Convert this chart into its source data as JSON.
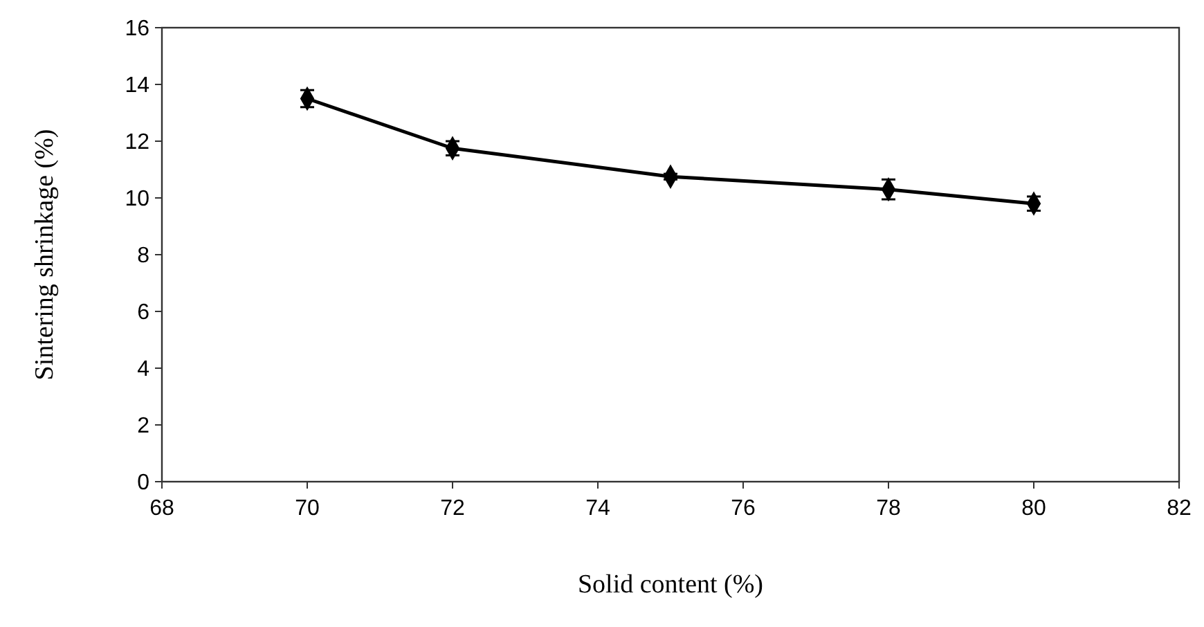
{
  "chart_data": {
    "type": "line",
    "xlabel": "Solid content (%)",
    "ylabel": "Sintering shrinkage (%)",
    "x": [
      70,
      72,
      75,
      78,
      80
    ],
    "series": [
      {
        "color": "#000000",
        "values": [
          13.5,
          11.75,
          10.75,
          10.3,
          9.8
        ],
        "errors": [
          0.3,
          0.25,
          0.1,
          0.35,
          0.25
        ]
      }
    ],
    "xlim": [
      68,
      82
    ],
    "xticks": [
      68,
      70,
      72,
      74,
      76,
      78,
      80,
      82
    ],
    "ylim": [
      0,
      16
    ],
    "yticks": [
      0,
      2,
      4,
      6,
      8,
      10,
      12,
      14,
      16
    ],
    "grid": false,
    "marker": "diamond",
    "line_style": "solid"
  }
}
